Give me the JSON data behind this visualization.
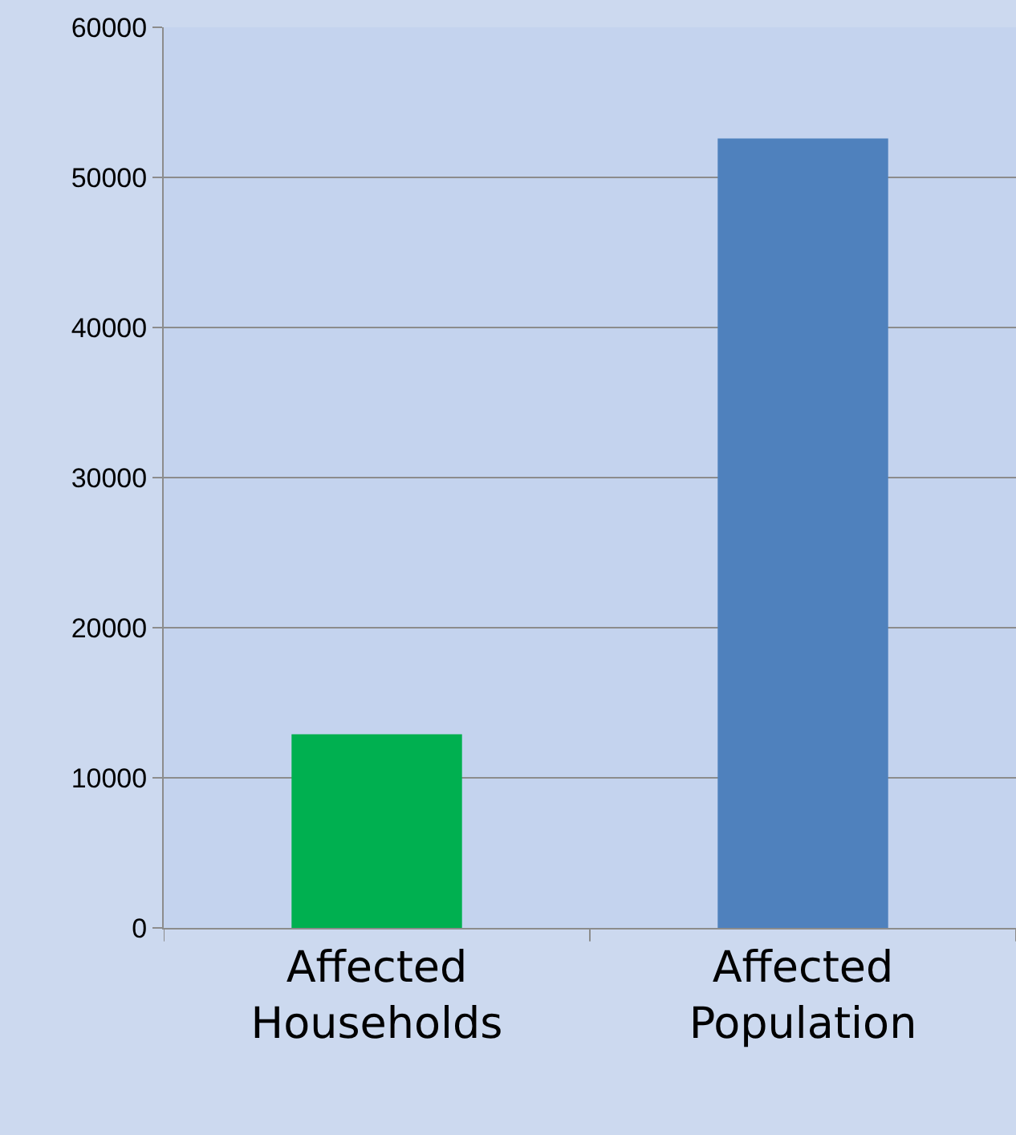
{
  "chart_data": {
    "type": "bar",
    "categories": [
      "Affected Households",
      "Affected Population"
    ],
    "values": [
      12900,
      52600
    ],
    "colors": [
      "#00b050",
      "#4f81bd"
    ],
    "ylim": [
      0,
      60000
    ],
    "yticks": [
      0,
      10000,
      20000,
      30000,
      40000,
      50000,
      60000
    ],
    "grid": "y"
  }
}
